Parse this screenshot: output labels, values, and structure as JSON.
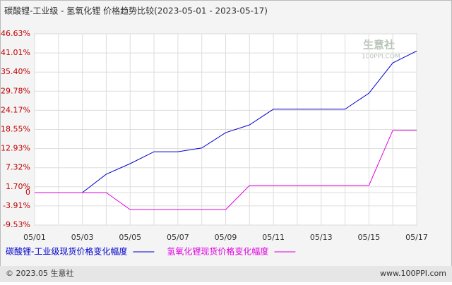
{
  "chart_data": {
    "type": "line",
    "title": "碳酸锂-工业级 - 氢氧化锂 价格趋势比较(2023-05-01 - 2023-05-17)",
    "categories": [
      "05/01",
      null,
      "05/03",
      null,
      "05/05",
      null,
      "05/07",
      null,
      "05/09",
      null,
      "05/11",
      null,
      "05/13",
      null,
      "05/15",
      null,
      "05/17"
    ],
    "series": [
      {
        "name": "碳酸锂-工业级现货价格变化幅度",
        "color": "#0000cc",
        "values": [
          0,
          0,
          0,
          5.4,
          8.5,
          12.0,
          12.0,
          13.1,
          17.6,
          19.9,
          24.5,
          24.5,
          24.5,
          24.5,
          29.2,
          38.1,
          41.6
        ]
      },
      {
        "name": "氢氧化锂现货价格变化幅度",
        "color": "#e000e0",
        "values": [
          0,
          0,
          0,
          0,
          -5.0,
          -5.0,
          -5.0,
          -5.0,
          -5.0,
          2.1,
          2.1,
          2.1,
          2.1,
          2.1,
          2.1,
          18.3,
          18.3
        ]
      }
    ],
    "ylim": [
      -9.53,
      46.63
    ],
    "yticks": [
      {
        "value": 46.63,
        "label": "46.63%"
      },
      {
        "value": 41.01,
        "label": "41.01%"
      },
      {
        "value": 35.4,
        "label": "35.40%"
      },
      {
        "value": 29.78,
        "label": "29.78%"
      },
      {
        "value": 24.17,
        "label": "24.17%"
      },
      {
        "value": 18.55,
        "label": "18.55%"
      },
      {
        "value": 12.93,
        "label": "12.93%"
      },
      {
        "value": 7.32,
        "label": "7.32%"
      },
      {
        "value": 1.7,
        "label": "1.70%"
      },
      0,
      {
        "value": -3.91,
        "label": "-3.91%"
      },
      {
        "value": -9.53,
        "label": "-9.53%"
      }
    ],
    "grid": true,
    "watermark": [
      "生意社",
      "100PPI.COM"
    ],
    "footer": [
      "© 2023.05 生意社",
      "www.100PPI.com"
    ]
  }
}
